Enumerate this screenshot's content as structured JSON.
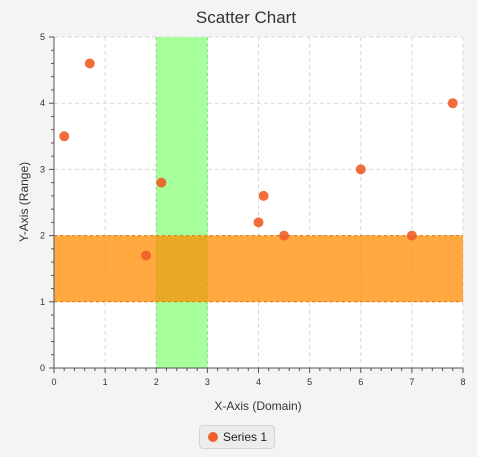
{
  "colors": {
    "background": "#f4f4f4",
    "plot_background": "#ffffff",
    "grid": "#d9d9d9",
    "axis": "#555555",
    "series": "#f0612a",
    "band_vertical": "#a6ff9b",
    "band_horizontal": "#ff8c00"
  },
  "chart_data": {
    "type": "scatter",
    "title": "Scatter Chart",
    "xlabel": "X-Axis (Domain)",
    "ylabel": "Y-Axis (Range)",
    "xlim": [
      0,
      8
    ],
    "ylim": [
      0,
      5
    ],
    "x_ticks": [
      0,
      1,
      2,
      3,
      4,
      5,
      6,
      7,
      8
    ],
    "y_ticks": [
      0,
      1,
      2,
      3,
      4,
      5
    ],
    "grid": true,
    "legend_position": "bottom",
    "series": [
      {
        "name": "Series 1",
        "points": [
          {
            "x": 0.2,
            "y": 3.5
          },
          {
            "x": 0.7,
            "y": 4.6
          },
          {
            "x": 1.8,
            "y": 1.7
          },
          {
            "x": 2.1,
            "y": 2.8
          },
          {
            "x": 4.0,
            "y": 2.2
          },
          {
            "x": 4.1,
            "y": 2.6
          },
          {
            "x": 4.5,
            "y": 2.0
          },
          {
            "x": 6.0,
            "y": 3.0
          },
          {
            "x": 7.0,
            "y": 2.0
          },
          {
            "x": 7.8,
            "y": 4.0
          }
        ]
      }
    ],
    "bands": [
      {
        "orientation": "vertical",
        "from": 2,
        "to": 3
      },
      {
        "orientation": "horizontal",
        "from": 1,
        "to": 2
      }
    ]
  }
}
